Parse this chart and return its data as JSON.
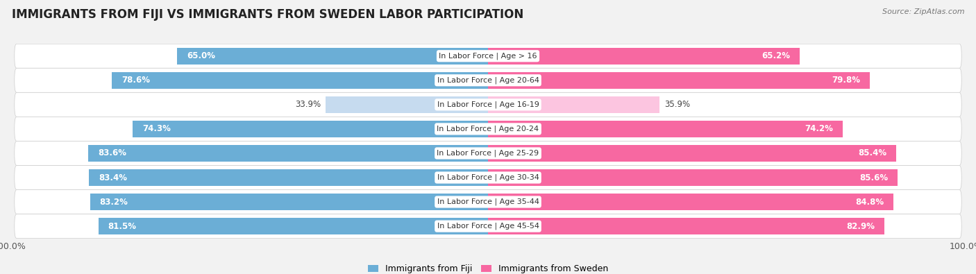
{
  "title": "IMMIGRANTS FROM FIJI VS IMMIGRANTS FROM SWEDEN LABOR PARTICIPATION",
  "source": "Source: ZipAtlas.com",
  "categories": [
    "In Labor Force | Age > 16",
    "In Labor Force | Age 20-64",
    "In Labor Force | Age 16-19",
    "In Labor Force | Age 20-24",
    "In Labor Force | Age 25-29",
    "In Labor Force | Age 30-34",
    "In Labor Force | Age 35-44",
    "In Labor Force | Age 45-54"
  ],
  "fiji_values": [
    65.0,
    78.6,
    33.9,
    74.3,
    83.6,
    83.4,
    83.2,
    81.5
  ],
  "sweden_values": [
    65.2,
    79.8,
    35.9,
    74.2,
    85.4,
    85.6,
    84.8,
    82.9
  ],
  "fiji_color": "#6baed6",
  "fiji_color_light": "#c6dbef",
  "sweden_color": "#f768a1",
  "sweden_color_light": "#fcc5e0",
  "max_value": 100.0,
  "background_color": "#f2f2f2",
  "row_bg_even": "#e8e8e8",
  "row_bg_odd": "#f5f5f5",
  "title_fontsize": 12,
  "value_fontsize": 8.5,
  "cat_fontsize": 8,
  "legend_label_fiji": "Immigrants from Fiji",
  "legend_label_sweden": "Immigrants from Sweden",
  "low_threshold": 50
}
